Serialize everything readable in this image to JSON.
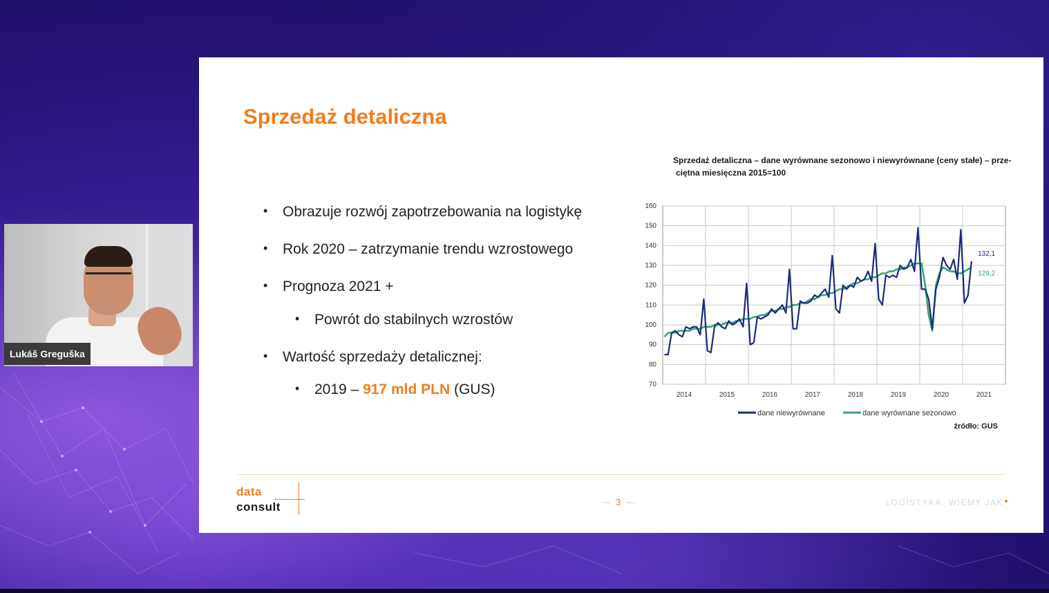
{
  "slide": {
    "title": "Sprzedaż detaliczna",
    "bullets": {
      "b1": "Obrazuje rozwój zapotrzebowania na logistykę",
      "b2": "Rok 2020 – zatrzymanie trendu wzrostowego",
      "b3": "Prognoza 2021 +",
      "b3a": "Powrót do stabilnych wzrostów",
      "b4": "Wartość sprzedaży detalicznej:",
      "b4a_pre": "2019 – ",
      "b4a_value": "917 mld PLN",
      "b4a_post": " (GUS)"
    },
    "bullet_char": "•",
    "source": "źródło: GUS",
    "logo": {
      "line1": "data",
      "line2": "consult"
    },
    "page_number": "3",
    "page_dash": "—",
    "tagline": "LOGISTYKA, WIEMY JAK"
  },
  "webcam": {
    "name": "Lukáš Greguška"
  },
  "colors": {
    "accent": "#f07e1d",
    "series_raw": "#1b2a78",
    "series_sa": "#3aa37a",
    "grid": "#c8c8c8"
  },
  "chart_data": {
    "type": "line",
    "title": "Sprzedaż detaliczna – dane wyrównane sezonowo i niewyrównane (ceny stałe) – prze-",
    "title_line2": "ciętna miesięczna 2015=100",
    "x_labels": [
      "2014",
      "2015",
      "2016",
      "2017",
      "2018",
      "2019",
      "2020",
      "2021"
    ],
    "ylim": [
      70,
      160
    ],
    "y_ticks": [
      70,
      80,
      90,
      100,
      110,
      120,
      130,
      140,
      150,
      160
    ],
    "legend_position": "bottom",
    "end_labels": {
      "raw": "132,1",
      "sa": "129,2"
    },
    "series": [
      {
        "name": "dane niewyrównane",
        "values": [
          85,
          85,
          96,
          97,
          95,
          94,
          99,
          98,
          99,
          99,
          95,
          113,
          87,
          86,
          99,
          101,
          99,
          98,
          102,
          100,
          101,
          103,
          99,
          121,
          90,
          91,
          104,
          103,
          104,
          105,
          108,
          106,
          108,
          110,
          106,
          128,
          98,
          98,
          112,
          111,
          111,
          112,
          115,
          114,
          116,
          118,
          114,
          135,
          108,
          106,
          120,
          118,
          120,
          119,
          124,
          122,
          123,
          127,
          122,
          141,
          113,
          110,
          125,
          124,
          125,
          124,
          130,
          128,
          129,
          133,
          127,
          149,
          118,
          118,
          113,
          98,
          118,
          124,
          134,
          130,
          128,
          133,
          123,
          148,
          111,
          115,
          132.1
        ]
      },
      {
        "name": "dane wyrównane sezonowo",
        "values": [
          94,
          96,
          96,
          96,
          97,
          97,
          97,
          97,
          98,
          98,
          98,
          99,
          99,
          99,
          100,
          100,
          100,
          101,
          101,
          101,
          102,
          102,
          103,
          103,
          103,
          104,
          104,
          105,
          105,
          106,
          107,
          107,
          108,
          108,
          109,
          109,
          110,
          110,
          111,
          111,
          112,
          113,
          113,
          114,
          115,
          115,
          116,
          116,
          117,
          118,
          118,
          119,
          120,
          121,
          121,
          122,
          123,
          123,
          124,
          124,
          125,
          126,
          126,
          127,
          127,
          128,
          128,
          129,
          129,
          130,
          131,
          131,
          131,
          120,
          105,
          97,
          120,
          126,
          129,
          128,
          127,
          127,
          126,
          126,
          127,
          128,
          129.2
        ]
      }
    ]
  }
}
